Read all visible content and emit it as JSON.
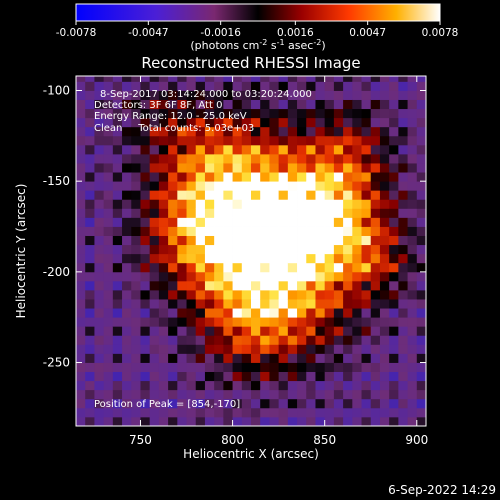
{
  "chart_data": {
    "type": "heatmap",
    "title": "Reconstructed RHESSI Image",
    "xlabel": "Heliocentric X (arcsec)",
    "ylabel": "Heliocentric Y (arcsec)",
    "xlim": [
      715,
      905
    ],
    "ylim": [
      -285,
      -92
    ],
    "xticks": [
      750,
      800,
      850,
      900
    ],
    "yticks": [
      -100,
      -150,
      -200,
      -250
    ],
    "colorbar": {
      "range": [
        -0.0078,
        0.0078
      ],
      "ticks": [
        "-0.0078",
        "-0.0047",
        "-0.0016",
        "0.0016",
        "0.0047",
        "0.0078"
      ],
      "label_main": "(photons cm",
      "label_exp1": "-2",
      "label_mid": " s",
      "label_exp2": "-1",
      "label_mid2": " asec",
      "label_exp3": "-2",
      "label_end": ")"
    },
    "annotations": {
      "time_range": "8-Sep-2017 03:14:24.000 to 03:20:24.000",
      "detectors": "Detectors: 3F 6F 8F, Att 0",
      "energy": "Energy Range: 12.0 - 25.0 keV",
      "clean": "Clean     Total counts: 5.03e+03",
      "peak": "Position of Peak = [854,-170]"
    },
    "peak_position": [
      854,
      -170
    ],
    "colormap": "red-temperature",
    "grid": false
  },
  "footer": {
    "timestamp": "6-Sep-2022 14:29"
  }
}
